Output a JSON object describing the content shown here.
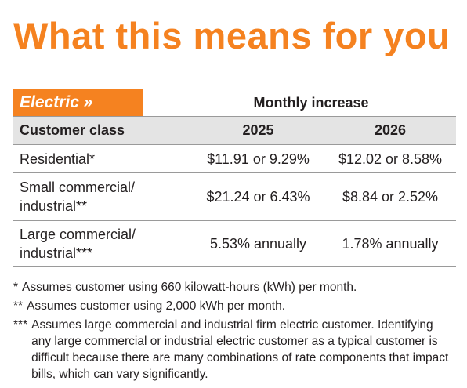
{
  "title": "What this means for you",
  "table": {
    "section": "Electric »",
    "group_header": "Monthly increase",
    "columns": [
      "Customer class",
      "2025",
      "2026"
    ],
    "rows": [
      [
        "Residential*",
        "$11.91 or 9.29%",
        "$12.02 or 8.58%"
      ],
      [
        "Small commercial/ industrial**",
        "$21.24 or 6.43%",
        "$8.84 or 2.52%"
      ],
      [
        "Large commercial/ industrial***",
        "5.53% annually",
        "1.78% annually"
      ]
    ]
  },
  "footnotes": [
    {
      "marker": "*",
      "text": "Assumes customer using 660 kilowatt-hours (kWh) per month."
    },
    {
      "marker": "**",
      "text": "Assumes customer using 2,000 kWh per month."
    },
    {
      "marker": "***",
      "text": "Assumes large commercial and industrial firm electric customer. Identifying any large commercial or industrial electric customer as a typical customer is difficult because there are many combinations of rate components that impact bills, which can vary significantly."
    }
  ]
}
